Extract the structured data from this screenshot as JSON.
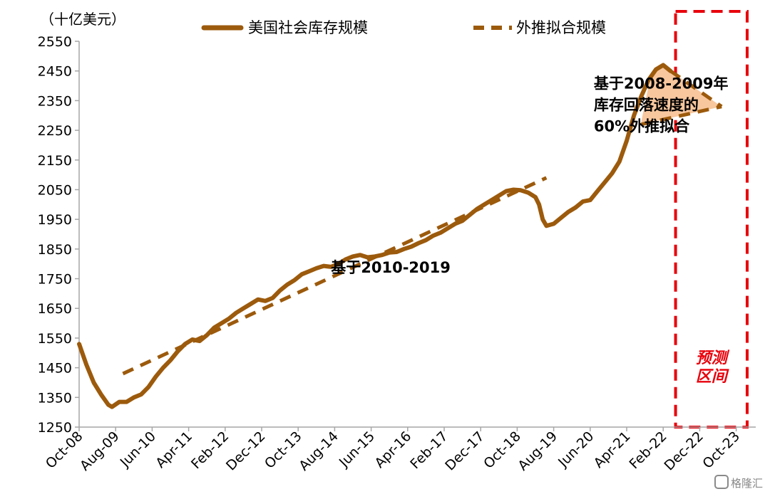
{
  "chart_data": {
    "type": "line",
    "unit_label": "（十亿美元）",
    "ylim": [
      1250,
      2550
    ],
    "y_ticks": [
      1250,
      1350,
      1450,
      1550,
      1650,
      1750,
      1850,
      1950,
      2050,
      2150,
      2250,
      2350,
      2450,
      2550
    ],
    "x_range": [
      "2008-10",
      "2024-01"
    ],
    "x_ticks": [
      "Oct-08",
      "Aug-09",
      "Jun-10",
      "Apr-11",
      "Feb-12",
      "Dec-12",
      "Oct-13",
      "Aug-14",
      "Jun-15",
      "Apr-16",
      "Feb-17",
      "Dec-17",
      "Oct-18",
      "Aug-19",
      "Jun-20",
      "Apr-21",
      "Feb-22",
      "Dec-22",
      "Oct-23"
    ],
    "legend_position": "top",
    "grid": false,
    "series": [
      {
        "name": "美国社会库存规模",
        "style": "solid",
        "color": "#9c5a0c",
        "points": [
          [
            "2008-10",
            1530
          ],
          [
            "2008-12",
            1460
          ],
          [
            "2009-02",
            1400
          ],
          [
            "2009-04",
            1360
          ],
          [
            "2009-06",
            1325
          ],
          [
            "2009-07",
            1318
          ],
          [
            "2009-09",
            1335
          ],
          [
            "2009-11",
            1335
          ],
          [
            "2010-01",
            1350
          ],
          [
            "2010-03",
            1360
          ],
          [
            "2010-05",
            1385
          ],
          [
            "2010-07",
            1420
          ],
          [
            "2010-09",
            1450
          ],
          [
            "2010-11",
            1475
          ],
          [
            "2011-01",
            1505
          ],
          [
            "2011-03",
            1530
          ],
          [
            "2011-05",
            1545
          ],
          [
            "2011-07",
            1540
          ],
          [
            "2011-09",
            1560
          ],
          [
            "2011-11",
            1585
          ],
          [
            "2012-01",
            1600
          ],
          [
            "2012-03",
            1615
          ],
          [
            "2012-05",
            1635
          ],
          [
            "2012-07",
            1650
          ],
          [
            "2012-09",
            1665
          ],
          [
            "2012-11",
            1680
          ],
          [
            "2013-01",
            1675
          ],
          [
            "2013-03",
            1685
          ],
          [
            "2013-05",
            1710
          ],
          [
            "2013-07",
            1730
          ],
          [
            "2013-09",
            1745
          ],
          [
            "2013-11",
            1765
          ],
          [
            "2014-01",
            1775
          ],
          [
            "2014-03",
            1785
          ],
          [
            "2014-05",
            1793
          ],
          [
            "2014-07",
            1790
          ],
          [
            "2014-09",
            1800
          ],
          [
            "2014-11",
            1815
          ],
          [
            "2015-01",
            1825
          ],
          [
            "2015-03",
            1830
          ],
          [
            "2015-05",
            1822
          ],
          [
            "2015-07",
            1825
          ],
          [
            "2015-09",
            1830
          ],
          [
            "2015-11",
            1838
          ],
          [
            "2016-01",
            1840
          ],
          [
            "2016-03",
            1850
          ],
          [
            "2016-05",
            1858
          ],
          [
            "2016-07",
            1870
          ],
          [
            "2016-09",
            1880
          ],
          [
            "2016-11",
            1895
          ],
          [
            "2017-01",
            1905
          ],
          [
            "2017-03",
            1920
          ],
          [
            "2017-05",
            1935
          ],
          [
            "2017-07",
            1945
          ],
          [
            "2017-09",
            1965
          ],
          [
            "2017-11",
            1985
          ],
          [
            "2018-01",
            2000
          ],
          [
            "2018-03",
            2015
          ],
          [
            "2018-05",
            2030
          ],
          [
            "2018-07",
            2045
          ],
          [
            "2018-09",
            2050
          ],
          [
            "2018-11",
            2048
          ],
          [
            "2019-01",
            2040
          ],
          [
            "2019-03",
            2025
          ],
          [
            "2019-04",
            2000
          ],
          [
            "2019-05",
            1950
          ],
          [
            "2019-06",
            1928
          ],
          [
            "2019-08",
            1935
          ],
          [
            "2019-10",
            1955
          ],
          [
            "2019-12",
            1975
          ],
          [
            "2020-02",
            1990
          ],
          [
            "2020-04",
            2010
          ],
          [
            "2020-06",
            2015
          ],
          [
            "2020-08",
            2045
          ],
          [
            "2020-10",
            2075
          ],
          [
            "2020-12",
            2105
          ],
          [
            "2021-02",
            2145
          ],
          [
            "2021-04",
            2215
          ],
          [
            "2021-06",
            2300
          ],
          [
            "2021-08",
            2365
          ],
          [
            "2021-10",
            2420
          ],
          [
            "2021-12",
            2455
          ],
          [
            "2022-02",
            2470
          ],
          [
            "2022-04",
            2450
          ]
        ]
      },
      {
        "name": "外推拟合规模",
        "style": "dashed",
        "color": "#9c5a0c",
        "segments": [
          [
            [
              "2009-10",
              1430
            ],
            [
              "2019-06",
              2090
            ]
          ],
          [
            [
              "2022-04",
              2450
            ],
            [
              "2023-06",
              2330
            ]
          ],
          [
            [
              "2021-08",
              2270
            ],
            [
              "2023-06",
              2330
            ]
          ]
        ]
      }
    ],
    "annotations": [
      {
        "text": "基于2010-2019",
        "data_anchor": [
          "2014-07",
          1770
        ]
      },
      {
        "text_lines": [
          "基于2008-2009年",
          "库存回落速度的",
          "60%外推拟合"
        ],
        "data_anchor": [
          "2020-07",
          2390
        ]
      }
    ],
    "shaded_region": {
      "label_lines": [
        "预测",
        "区间"
      ],
      "x_start": "2022-05",
      "x_end": "2024-01",
      "color": "#e8000b"
    },
    "fill_between": {
      "color": "#f8c79e",
      "polygon": [
        [
          "2021-08",
          2280
        ],
        [
          "2021-10",
          2400
        ],
        [
          "2021-12",
          2455
        ],
        [
          "2022-02",
          2470
        ],
        [
          "2022-04",
          2450
        ],
        [
          "2023-06",
          2330
        ],
        [
          "2021-08",
          2270
        ]
      ]
    }
  },
  "watermark": "格隆汇"
}
